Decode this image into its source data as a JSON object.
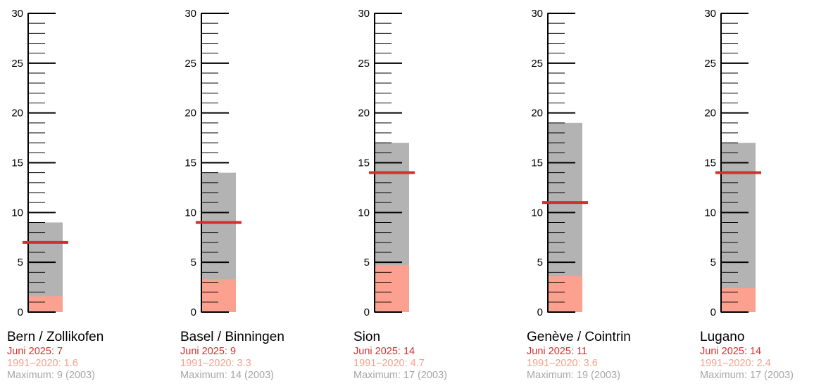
{
  "colors": {
    "current": "#d32f2f",
    "normal_bar": "#fca08f",
    "normal_text": "#f4a08c",
    "max_bar": "#b3b3b3",
    "max_text": "#a6a6a6",
    "axis": "#000000"
  },
  "chart_data": {
    "type": "bar",
    "ylim": [
      0,
      30
    ],
    "yticks": [
      0,
      5,
      10,
      15,
      20,
      25,
      30
    ],
    "grid": false,
    "stations": [
      {
        "name": "Bern / Zollikofen",
        "current": 7,
        "normal": 1.6,
        "max": 9,
        "max_year": "2003",
        "current_label": "Juni 2025: 7",
        "normal_label": "1991–2020: 1.6",
        "max_label": "Maximum: 9 (2003)"
      },
      {
        "name": "Basel / Binningen",
        "current": 9,
        "normal": 3.3,
        "max": 14,
        "max_year": "2003",
        "current_label": "Juni 2025: 9",
        "normal_label": "1991–2020: 3.3",
        "max_label": "Maximum: 14 (2003)"
      },
      {
        "name": "Sion",
        "current": 14,
        "normal": 4.7,
        "max": 17,
        "max_year": "2003",
        "current_label": "Juni 2025: 14",
        "normal_label": "1991–2020: 4.7",
        "max_label": "Maximum: 17 (2003)"
      },
      {
        "name": "Genève / Cointrin",
        "current": 11,
        "normal": 3.6,
        "max": 19,
        "max_year": "2003",
        "current_label": "Juni 2025: 11",
        "normal_label": "1991–2020: 3.6",
        "max_label": "Maximum: 19 (2003)"
      },
      {
        "name": "Lugano",
        "current": 14,
        "normal": 2.4,
        "max": 17,
        "max_year": "2003",
        "current_label": "Juni 2025: 14",
        "normal_label": "1991–2020: 2.4",
        "max_label": "Maximum: 17 (2003)"
      }
    ]
  }
}
